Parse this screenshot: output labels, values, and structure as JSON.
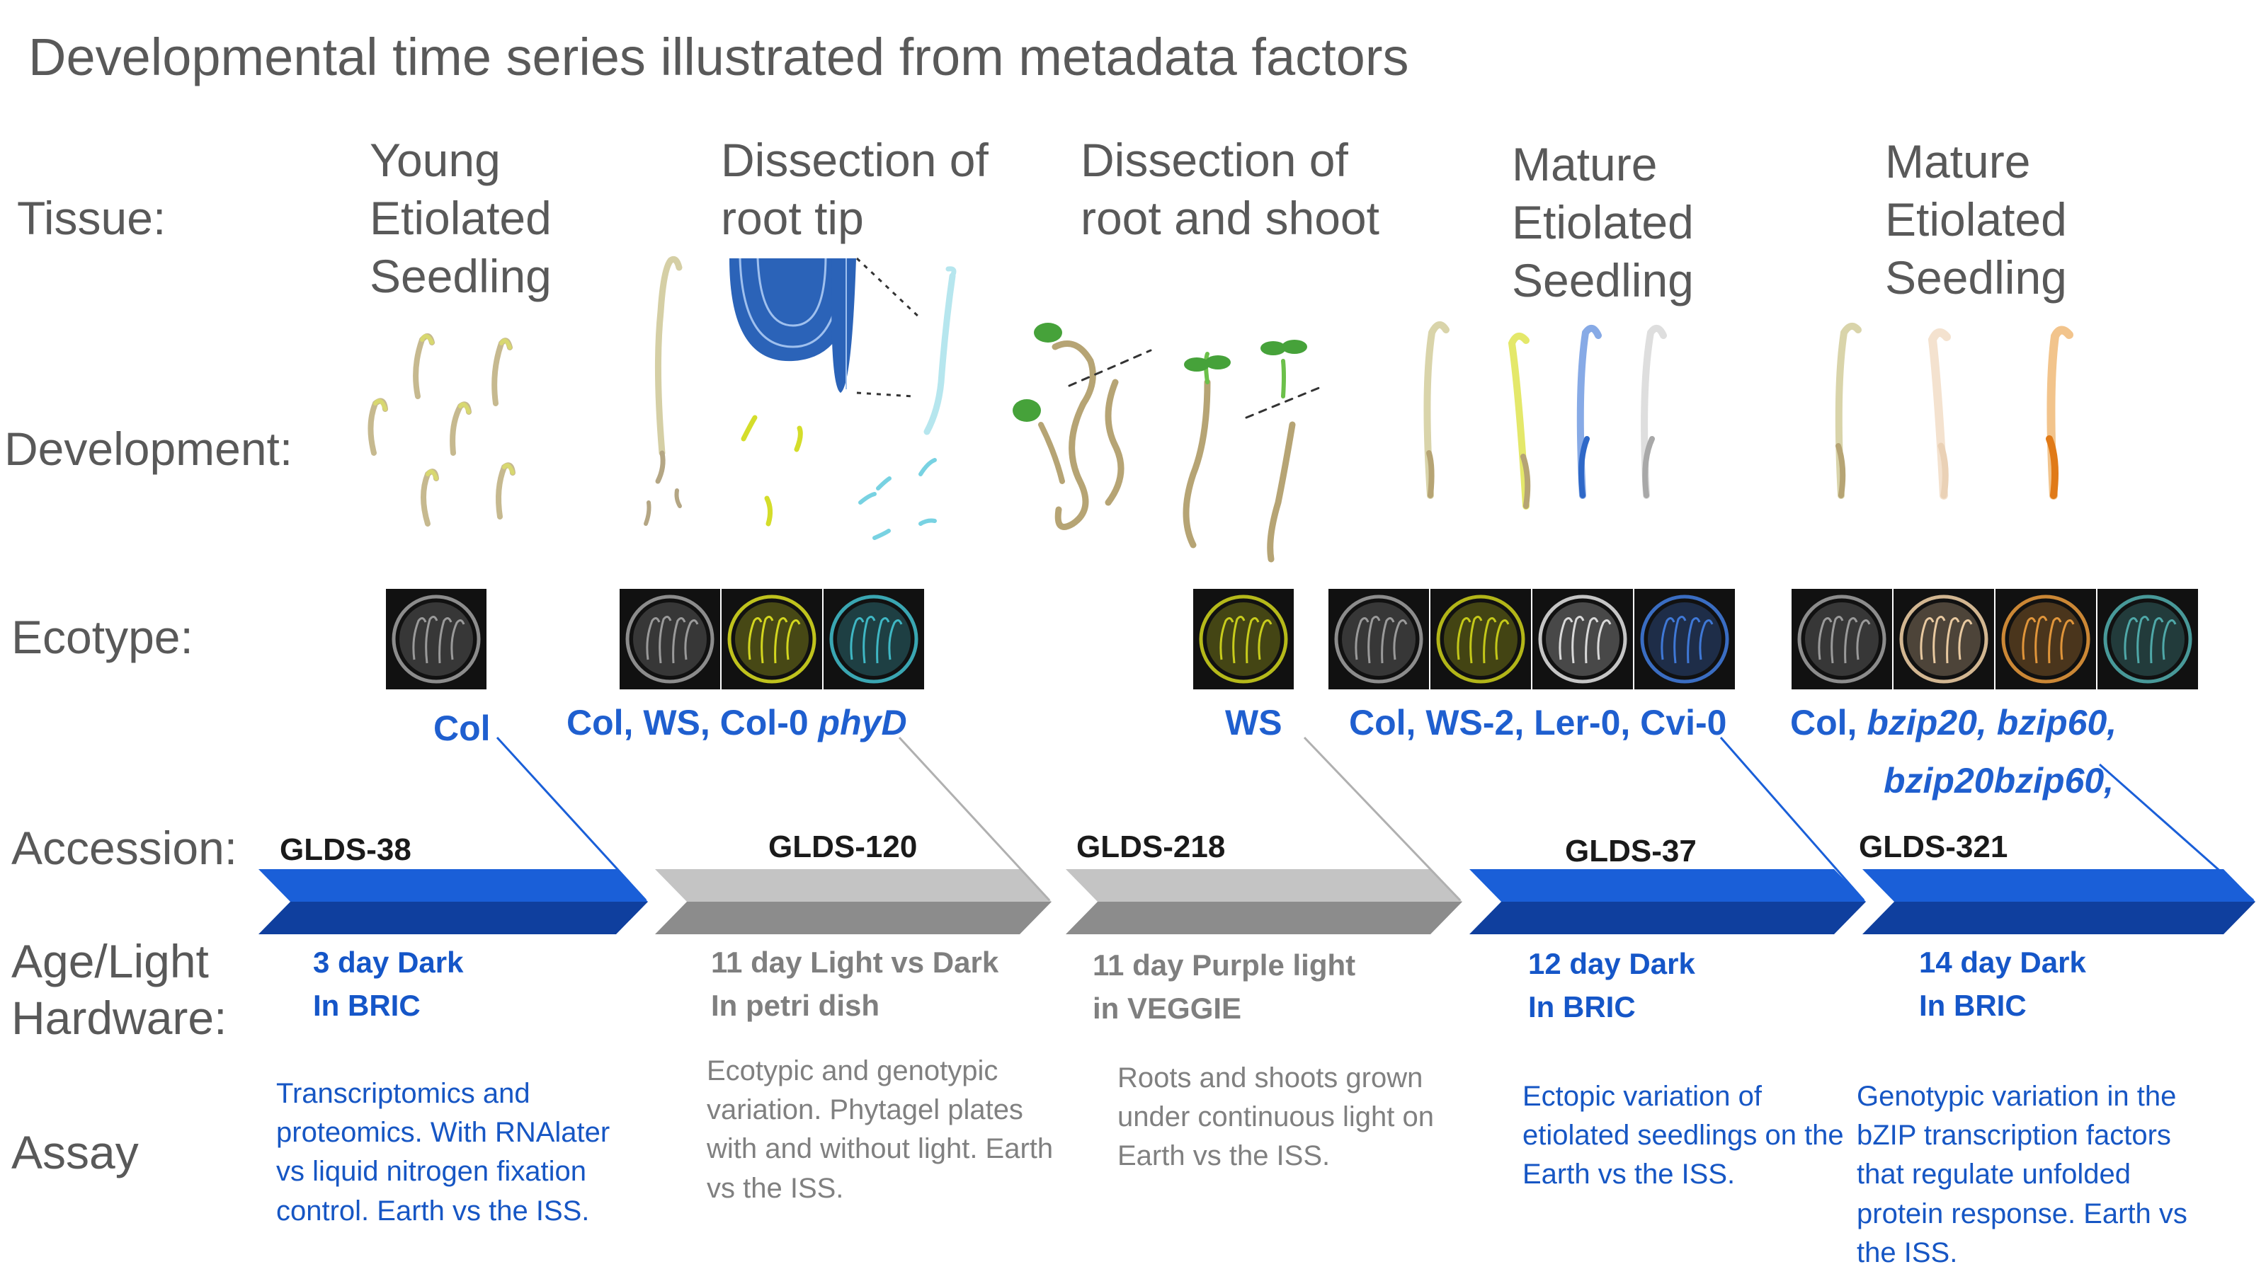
{
  "title": "Developmental time series illustrated from metadata factors",
  "row_labels": {
    "tissue": "Tissue:",
    "development": "Development:",
    "ecotype": "Ecotype:",
    "accession": "Accession:",
    "age_light": "Age/Light",
    "hardware": "Hardware:",
    "assay": "Assay"
  },
  "experiments": [
    {
      "tissue": "Young\nEtiolated\nSeedling",
      "ecotype": "Col",
      "accession": "GLDS-38",
      "age_light": "3 day Dark\nIn BRIC",
      "assay": "Transcriptomics and proteomics. With RNAlater vs liquid nitrogen fixation control. Earth vs the ISS.",
      "arrow_color": "#1557d6",
      "plate_colors": [
        "#9a9a9a"
      ]
    },
    {
      "tissue": "Dissection of\nroot tip",
      "ecotype_parts": [
        "Col, WS, Col-0 ",
        "phyD"
      ],
      "accession": "GLDS-120",
      "age_light": "11 day Light vs Dark\nIn petri dish",
      "assay": "Ecotypic and genotypic variation. Phytagel plates with and without light. Earth vs the ISS.",
      "arrow_color": "#bdbdbd",
      "plate_colors": [
        "#9a9a9a",
        "#d3d61f",
        "#3fb7c4"
      ]
    },
    {
      "tissue": "Dissection of\nroot and shoot",
      "ecotype": "WS",
      "accession": "GLDS-218",
      "age_light": "11 day Purple light\nin VEGGIE",
      "assay": "Roots and shoots grown under continuous light on Earth vs the ISS.",
      "arrow_color": "#bdbdbd",
      "plate_colors": [
        "#c8cc1c"
      ]
    },
    {
      "tissue": "Mature\nEtiolated\nSeedling",
      "ecotype": "Col, WS-2, Ler-0, Cvi-0",
      "accession": "GLDS-37",
      "age_light": "12 day Dark\nIn BRIC",
      "assay": "Ectopic variation of etiolated seedlings on the Earth vs the ISS.",
      "arrow_color": "#1557d6",
      "plate_colors": [
        "#9a9a9a",
        "#c4c819",
        "#d9d9d9",
        "#3f78d6"
      ]
    },
    {
      "tissue": "Mature\nEtiolated\nSeedling",
      "ecotype_parts": [
        "Col, ",
        "bzip20, bzip60,",
        "bzip20bzip60,"
      ],
      "accession": "GLDS-321",
      "age_light": "14 day Dark\nIn BRIC",
      "assay": "Genotypic variation in the bZIP transcription factors that regulate unfolded protein response. Earth vs the ISS.",
      "arrow_color": "#1557d6",
      "plate_colors": [
        "#9a9a9a",
        "#e8c9a0",
        "#e0953a",
        "#4fa8a8"
      ]
    }
  ]
}
